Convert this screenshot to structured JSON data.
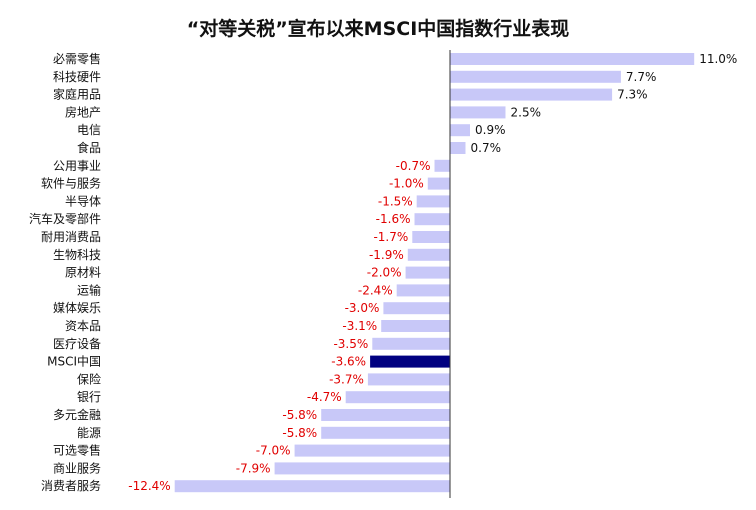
{
  "chart_data": {
    "type": "bar",
    "orientation": "horizontal",
    "title": "“对等关税”宣布以来MSCI中国指数行业表现",
    "xlabel": "",
    "ylabel": "",
    "unit": "%",
    "grid": false,
    "legend": "none",
    "categories": [
      "必需零售",
      "科技硬件",
      "家庭用品",
      "房地产",
      "电信",
      "食品",
      "公用事业",
      "软件与服务",
      "半导体",
      "汽车及零部件",
      "耐用消费品",
      "生物科技",
      "原材料",
      "运输",
      "媒体娱乐",
      "资本品",
      "医疗设备",
      "MSCI中国",
      "保险",
      "银行",
      "多元金融",
      "能源",
      "可选零售",
      "商业服务",
      "消费者服务"
    ],
    "values": [
      11.0,
      7.7,
      7.3,
      2.5,
      0.9,
      0.7,
      -0.7,
      -1.0,
      -1.5,
      -1.6,
      -1.7,
      -1.9,
      -2.0,
      -2.4,
      -3.0,
      -3.1,
      -3.5,
      -3.6,
      -3.7,
      -4.7,
      -5.8,
      -5.8,
      -7.0,
      -7.9,
      -12.4
    ],
    "value_labels": [
      "11.0%",
      "7.7%",
      "7.3%",
      "2.5%",
      "0.9%",
      "0.7%",
      "-0.7%",
      "-1.0%",
      "-1.5%",
      "-1.6%",
      "-1.7%",
      "-1.9%",
      "-2.0%",
      "-2.4%",
      "-3.0%",
      "-3.1%",
      "-3.5%",
      "-3.6%",
      "-3.7%",
      "-4.7%",
      "-5.8%",
      "-5.8%",
      "-7.0%",
      "-7.9%",
      "-12.4%"
    ],
    "highlight": "MSCI中国",
    "colors": {
      "bar": "#c8c8f8",
      "highlight_bar": "#000080",
      "positive_label": "#111111",
      "negative_label": "#e00000",
      "axis": "#333333"
    }
  }
}
